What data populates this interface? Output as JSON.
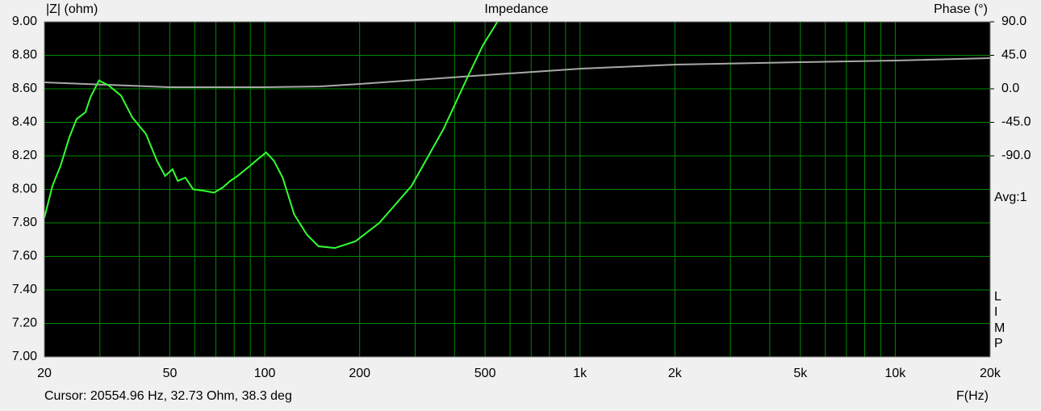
{
  "chart_data": {
    "type": "line",
    "title": "Impedance",
    "y_label": "|Z| (ohm)",
    "y2_label": "Phase (°)",
    "x_label": "F(Hz)",
    "cursor_text": "Cursor: 20554.96 Hz, 32.73 Ohm, 38.3 deg",
    "avg_text": "Avg:1",
    "side_label": [
      "L",
      "I",
      "M",
      "P"
    ],
    "log_x": true,
    "grid": true,
    "grid_color": "#008a00",
    "background": "#000000",
    "xlim": [
      20,
      20000
    ],
    "xticks": [
      20,
      50,
      100,
      200,
      500,
      {
        "value": 1000,
        "label": "1k"
      },
      {
        "value": 2000,
        "label": "2k"
      },
      {
        "value": 5000,
        "label": "5k"
      },
      {
        "value": 10000,
        "label": "10k"
      },
      {
        "value": 20000,
        "label": "20k"
      }
    ],
    "xgrid": [
      30,
      40,
      50,
      60,
      70,
      80,
      90,
      100,
      200,
      300,
      400,
      500,
      600,
      700,
      800,
      900,
      1000,
      2000,
      3000,
      4000,
      5000,
      6000,
      7000,
      8000,
      9000,
      10000
    ],
    "ylim": [
      7,
      9
    ],
    "yticks": [
      {
        "value": 7,
        "label": "7.00"
      },
      {
        "value": 7.2,
        "label": "7.20"
      },
      {
        "value": 7.4,
        "label": "7.40"
      },
      {
        "value": 7.6,
        "label": "7.60"
      },
      {
        "value": 7.8,
        "label": "7.80"
      },
      {
        "value": 8,
        "label": "8.00"
      },
      {
        "value": 8.2,
        "label": "8.20"
      },
      {
        "value": 8.4,
        "label": "8.40"
      },
      {
        "value": 8.6,
        "label": "8.60"
      },
      {
        "value": 8.8,
        "label": "8.80"
      },
      {
        "value": 9,
        "label": "9.00"
      }
    ],
    "y2lim": [
      -360,
      90
    ],
    "y2ticks": [
      {
        "value": 90,
        "label": "90.0"
      },
      {
        "value": 45,
        "label": "45.0"
      },
      {
        "value": 0,
        "label": "0.0"
      },
      {
        "value": -45,
        "label": "-45.0"
      },
      {
        "value": -90,
        "label": "-90.0"
      }
    ],
    "series": [
      {
        "name": "Impedance",
        "color": "#33ff33",
        "x": [
          20,
          21.2,
          22.5,
          24,
          25.3,
          27,
          28,
          29.8,
          32,
          35,
          38,
          42,
          45.5,
          48.3,
          51,
          53,
          56,
          59.3,
          65,
          69,
          73.5,
          77.7,
          82,
          89.8,
          95,
          101,
          107,
          114,
          124,
          136,
          148,
          167,
          194,
          231,
          292,
          369,
          440,
          492,
          547
        ],
        "values": [
          7.83,
          8.02,
          8.14,
          8.31,
          8.42,
          8.46,
          8.55,
          8.65,
          8.62,
          8.56,
          8.43,
          8.33,
          8.17,
          8.08,
          8.12,
          8.05,
          8.07,
          8.0,
          7.99,
          7.98,
          8.01,
          8.05,
          8.08,
          8.14,
          8.18,
          8.22,
          8.17,
          8.07,
          7.85,
          7.73,
          7.66,
          7.65,
          7.69,
          7.8,
          8.02,
          8.36,
          8.67,
          8.86,
          9.0
        ]
      },
      {
        "name": "Phase",
        "color": "#a8a8a8",
        "axis": "y2",
        "x": [
          20,
          50,
          100,
          150,
          200,
          500,
          1000,
          2000,
          5000,
          10000,
          20000
        ],
        "values": [
          8.7,
          2.2,
          2.2,
          3.3,
          6.5,
          18.4,
          27,
          32.5,
          35.8,
          38,
          41.2
        ]
      }
    ]
  }
}
